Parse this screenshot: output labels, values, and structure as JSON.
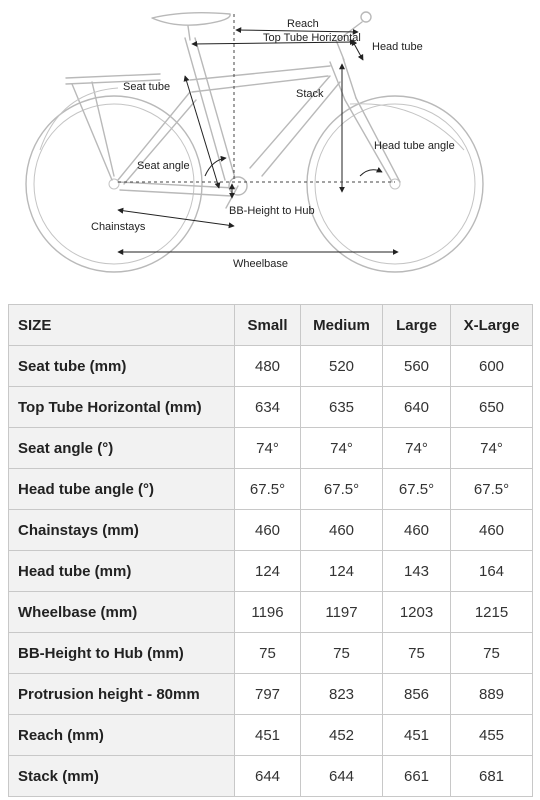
{
  "diagram": {
    "labels": {
      "reach": "Reach",
      "top_tube_horizontal": "Top Tube Horizontal",
      "head_tube": "Head tube",
      "seat_tube": "Seat tube",
      "stack": "Stack",
      "head_tube_angle": "Head tube angle",
      "seat_angle": "Seat angle",
      "bb_height": "BB-Height to Hub",
      "chainstays": "Chainstays",
      "wheelbase": "Wheelbase"
    }
  },
  "table": {
    "header": {
      "size": "SIZE",
      "small": "Small",
      "medium": "Medium",
      "large": "Large",
      "xlarge": "X-Large"
    },
    "rows": [
      {
        "label": "Seat tube (mm)",
        "small": "480",
        "medium": "520",
        "large": "560",
        "xlarge": "600"
      },
      {
        "label": "Top Tube Horizontal (mm)",
        "small": "634",
        "medium": "635",
        "large": "640",
        "xlarge": "650"
      },
      {
        "label": "Seat angle (°)",
        "small": "74°",
        "medium": "74°",
        "large": "74°",
        "xlarge": "74°"
      },
      {
        "label": "Head tube angle (°)",
        "small": "67.5°",
        "medium": "67.5°",
        "large": "67.5°",
        "xlarge": "67.5°"
      },
      {
        "label": "Chainstays (mm)",
        "small": "460",
        "medium": "460",
        "large": "460",
        "xlarge": "460"
      },
      {
        "label": "Head tube (mm)",
        "small": "124",
        "medium": "124",
        "large": "143",
        "xlarge": "164"
      },
      {
        "label": "Wheelbase (mm)",
        "small": "1196",
        "medium": "1197",
        "large": "1203",
        "xlarge": "1215"
      },
      {
        "label": "BB-Height to Hub (mm)",
        "small": "75",
        "medium": "75",
        "large": "75",
        "xlarge": "75"
      },
      {
        "label": "Protrusion height - 80mm",
        "small": "797",
        "medium": "823",
        "large": "856",
        "xlarge": "889"
      },
      {
        "label": "Reach (mm)",
        "small": "451",
        "medium": "452",
        "large": "451",
        "xlarge": "455"
      },
      {
        "label": "Stack (mm)",
        "small": "644",
        "medium": "644",
        "large": "661",
        "xlarge": "681"
      }
    ]
  }
}
